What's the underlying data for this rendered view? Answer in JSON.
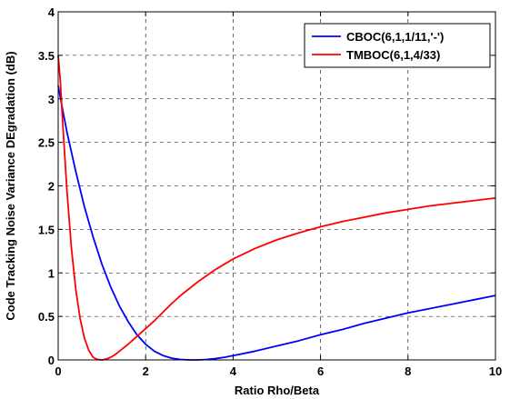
{
  "chart_data": {
    "type": "line",
    "xlabel": "Ratio Rho/Beta",
    "ylabel": "Code Tracking Noise Variance DEgradation (dB)",
    "xlim": [
      0,
      10
    ],
    "ylim": [
      0,
      4
    ],
    "xticks": [
      0,
      2,
      4,
      6,
      8,
      10
    ],
    "yticks": [
      0,
      0.5,
      1,
      1.5,
      2,
      2.5,
      3,
      3.5,
      4
    ],
    "xtick_labels": [
      "0",
      "2",
      "4",
      "6",
      "8",
      "10"
    ],
    "ytick_labels": [
      "0",
      "0.5",
      "1",
      "1.5",
      "2",
      "2.5",
      "3",
      "3.5",
      "4"
    ],
    "grid": true,
    "legend_position": "top-right",
    "series": [
      {
        "name": "CBOC(6,1,1/11,'-')",
        "color": "#0000ff",
        "x": [
          0,
          0.1,
          0.2,
          0.4,
          0.6,
          0.8,
          1.0,
          1.2,
          1.4,
          1.6,
          1.8,
          2.0,
          2.2,
          2.4,
          2.6,
          2.8,
          3.0,
          3.2,
          3.4,
          3.6,
          3.8,
          4.0,
          4.5,
          5.0,
          5.5,
          6.0,
          6.5,
          7.0,
          7.5,
          8.0,
          8.5,
          9.0,
          9.5,
          10.0
        ],
        "y": [
          3.15,
          2.88,
          2.62,
          2.17,
          1.76,
          1.41,
          1.1,
          0.84,
          0.62,
          0.44,
          0.29,
          0.18,
          0.1,
          0.05,
          0.02,
          0.005,
          0.0,
          0.0,
          0.005,
          0.015,
          0.03,
          0.05,
          0.1,
          0.16,
          0.22,
          0.29,
          0.35,
          0.42,
          0.48,
          0.54,
          0.59,
          0.64,
          0.69,
          0.74
        ]
      },
      {
        "name": "TMBOC(6,1,4/33)",
        "color": "#ff0000",
        "x": [
          0,
          0.05,
          0.1,
          0.2,
          0.3,
          0.4,
          0.5,
          0.6,
          0.7,
          0.8,
          0.9,
          1.0,
          1.1,
          1.2,
          1.3,
          1.4,
          1.6,
          1.8,
          2.0,
          2.2,
          2.4,
          2.6,
          2.8,
          3.0,
          3.2,
          3.4,
          3.6,
          3.8,
          4.0,
          4.5,
          5.0,
          5.5,
          6.0,
          6.5,
          7.0,
          7.5,
          8.0,
          8.5,
          9.0,
          9.5,
          10.0
        ],
        "y": [
          3.5,
          3.2,
          2.75,
          1.95,
          1.3,
          0.82,
          0.48,
          0.25,
          0.11,
          0.03,
          0.005,
          0.0,
          0.01,
          0.03,
          0.06,
          0.1,
          0.18,
          0.27,
          0.36,
          0.45,
          0.55,
          0.65,
          0.74,
          0.82,
          0.9,
          0.97,
          1.04,
          1.1,
          1.16,
          1.28,
          1.38,
          1.46,
          1.53,
          1.59,
          1.64,
          1.69,
          1.73,
          1.77,
          1.8,
          1.83,
          1.86
        ]
      }
    ]
  }
}
